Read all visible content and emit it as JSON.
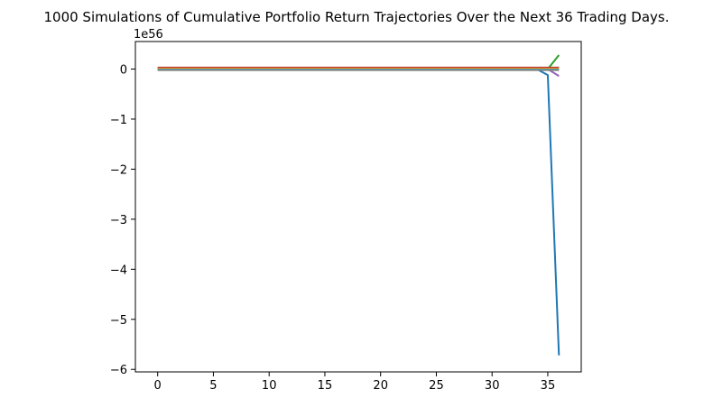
{
  "chart_data": {
    "type": "line",
    "title": "1000 Simulations of Cumulative Portfolio Return Trajectories Over the Next 36 Trading Days.",
    "xlabel": "",
    "ylabel": "",
    "y_offset_label": "1e56",
    "xlim": [
      -2,
      38
    ],
    "ylim": [
      -6.05,
      0.55
    ],
    "x_ticks": [
      0,
      5,
      10,
      15,
      20,
      25,
      30,
      35
    ],
    "y_ticks": [
      0,
      -1,
      -2,
      -3,
      -4,
      -5,
      -6
    ],
    "grid": false,
    "legend": "none",
    "series": [
      {
        "color": "#1f77b4",
        "x": [
          0,
          34,
          35,
          36
        ],
        "y": [
          0,
          0,
          -0.12,
          -5.72
        ]
      },
      {
        "color": "#2ca02c",
        "x": [
          0,
          35,
          36
        ],
        "y": [
          0,
          0,
          0.28
        ]
      },
      {
        "color": "#9467bd",
        "x": [
          0,
          35,
          36
        ],
        "y": [
          0,
          0,
          -0.14
        ]
      },
      {
        "color": "#8c564b",
        "x": [
          0,
          36
        ],
        "y": [
          0.03,
          0.03
        ]
      },
      {
        "color": "#d62728",
        "x": [
          0,
          36
        ],
        "y": [
          0.02,
          0.02
        ]
      },
      {
        "color": "#ff7f0e",
        "x": [
          0,
          36
        ],
        "y": [
          0.01,
          0.01
        ]
      },
      {
        "color": "#17becf",
        "x": [
          0,
          36
        ],
        "y": [
          -0.01,
          -0.01
        ]
      },
      {
        "color": "#7f7f7f",
        "x": [
          0,
          36
        ],
        "y": [
          -0.02,
          -0.02
        ]
      }
    ]
  }
}
